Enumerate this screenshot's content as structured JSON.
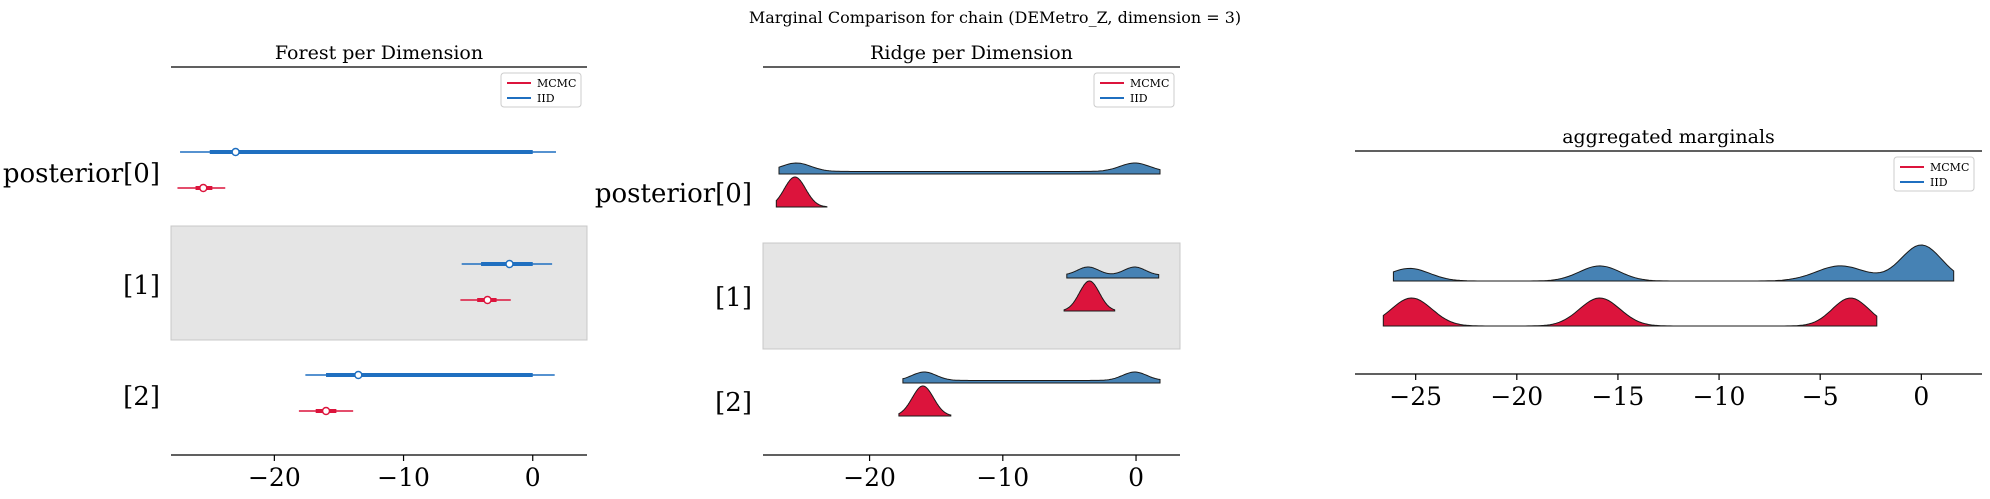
{
  "figure": {
    "title": "Marginal Comparison for chain (DEMetro_Z, dimension = 3)"
  },
  "colors": {
    "mcmc": "#dc143c",
    "iid": "#4682b4",
    "iid_line": "#1f6fc0",
    "band": "#e5e5e5"
  },
  "chart_data": [
    {
      "type": "forest",
      "title": "Forest per Dimension",
      "xlim": [
        -28,
        4.2
      ],
      "xticks": [
        -20,
        -10,
        0
      ],
      "xtick_labels": [
        "−20",
        "−10",
        "0"
      ],
      "ylabels": [
        "posterior[0]",
        "[1]",
        "[2]"
      ],
      "shaded_row": 1,
      "legend": [
        "MCMC",
        "IID"
      ],
      "rows": [
        {
          "iid": {
            "hdi": [
              -27.3,
              1.8
            ],
            "iqr": [
              -25.0,
              0.0
            ],
            "median": -23.0
          },
          "mcmc": {
            "hdi": [
              -27.5,
              -23.8
            ],
            "iqr": [
              -26.1,
              -24.8
            ],
            "median": -25.5
          }
        },
        {
          "iid": {
            "hdi": [
              -5.5,
              1.5
            ],
            "iqr": [
              -4.0,
              0.0
            ],
            "median": -1.8
          },
          "mcmc": {
            "hdi": [
              -5.6,
              -1.7
            ],
            "iqr": [
              -4.3,
              -2.8
            ],
            "median": -3.5
          }
        },
        {
          "iid": {
            "hdi": [
              -17.6,
              1.7
            ],
            "iqr": [
              -16.0,
              0.0
            ],
            "median": -13.5
          },
          "mcmc": {
            "hdi": [
              -18.1,
              -13.9
            ],
            "iqr": [
              -16.8,
              -15.2
            ],
            "median": -16.0
          }
        }
      ]
    },
    {
      "type": "ridge",
      "title": "Ridge per Dimension",
      "xlim": [
        -28,
        3.3
      ],
      "xticks": [
        -20,
        -10,
        0
      ],
      "xtick_labels": [
        "−20",
        "−10",
        "0"
      ],
      "ylabels": [
        "posterior[0]",
        "[1]",
        "[2]"
      ],
      "shaded_row": 1,
      "legend": [
        "MCMC",
        "IID"
      ],
      "rows": [
        {
          "iid": {
            "range": [
              -26.8,
              1.8
            ],
            "peaks": [
              {
                "x": -25.5,
                "h": 0.2,
                "w": 1.1
              },
              {
                "x": -0.1,
                "h": 0.2,
                "w": 1.1
              }
            ],
            "base": 0.06
          },
          "mcmc": {
            "range": [
              -27.0,
              -23.2
            ],
            "peaks": [
              {
                "x": -25.6,
                "h": 1.0,
                "w": 0.8
              }
            ]
          }
        },
        {
          "iid": {
            "range": [
              -5.2,
              1.7
            ],
            "peaks": [
              {
                "x": -3.6,
                "h": 0.24,
                "w": 0.8
              },
              {
                "x": -0.1,
                "h": 0.24,
                "w": 0.8
              }
            ],
            "base": 0.08
          },
          "mcmc": {
            "range": [
              -5.4,
              -1.6
            ],
            "peaks": [
              {
                "x": -3.5,
                "h": 1.0,
                "w": 0.75
              }
            ]
          }
        },
        {
          "iid": {
            "range": [
              -17.5,
              1.8
            ],
            "peaks": [
              {
                "x": -15.9,
                "h": 0.2,
                "w": 0.9
              },
              {
                "x": -0.1,
                "h": 0.2,
                "w": 0.9
              }
            ],
            "base": 0.06
          },
          "mcmc": {
            "range": [
              -17.8,
              -13.9
            ],
            "peaks": [
              {
                "x": -16.0,
                "h": 1.0,
                "w": 0.8
              }
            ]
          }
        }
      ]
    },
    {
      "type": "ridge",
      "title": "aggregated marginals",
      "xlim": [
        -28,
        3
      ],
      "xticks": [
        -25,
        -20,
        -15,
        -10,
        -5,
        0
      ],
      "xtick_labels": [
        "−25",
        "−20",
        "−15",
        "−10",
        "−5",
        "0"
      ],
      "legend": [
        "MCMC",
        "IID"
      ],
      "rows": [
        {
          "iid": {
            "range": [
              -26.1,
              1.6
            ],
            "peaks": [
              {
                "x": -25.3,
                "h": 0.35,
                "w": 1.0
              },
              {
                "x": -15.9,
                "h": 0.42,
                "w": 1.0
              },
              {
                "x": -4.0,
                "h": 0.42,
                "w": 1.2
              },
              {
                "x": 0.0,
                "h": 1.0,
                "w": 1.0
              }
            ]
          },
          "mcmc": {
            "range": [
              -26.6,
              -2.2
            ],
            "peaks": [
              {
                "x": -25.2,
                "h": 1.0,
                "w": 1.0
              },
              {
                "x": -15.9,
                "h": 1.0,
                "w": 1.0
              },
              {
                "x": -3.5,
                "h": 1.0,
                "w": 0.9
              }
            ]
          }
        }
      ]
    }
  ]
}
